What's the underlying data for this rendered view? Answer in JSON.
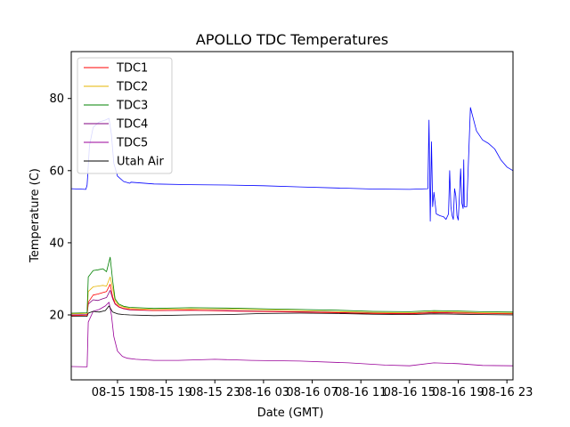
{
  "chart_data": {
    "type": "line",
    "title": "APOLLO TDC Temperatures",
    "xlabel": "Date (GMT)",
    "ylabel": "Temperature (C)",
    "xlim": [
      11.2,
      47.5
    ],
    "ylim": [
      2,
      93
    ],
    "x_units": "hours since 08-15 00:00 GMT",
    "x_ticks": [
      {
        "value": 15,
        "label": "08-15 15"
      },
      {
        "value": 19,
        "label": "08-15 19"
      },
      {
        "value": 23,
        "label": "08-15 23"
      },
      {
        "value": 27,
        "label": "08-16 03"
      },
      {
        "value": 31,
        "label": "08-16 07"
      },
      {
        "value": 35,
        "label": "08-16 11"
      },
      {
        "value": 39,
        "label": "08-16 15"
      },
      {
        "value": 43,
        "label": "08-16 19"
      },
      {
        "value": 47,
        "label": "08-16 23"
      }
    ],
    "y_ticks": [
      {
        "value": 20,
        "label": "20"
      },
      {
        "value": 40,
        "label": "40"
      },
      {
        "value": 60,
        "label": "60"
      },
      {
        "value": 80,
        "label": "80"
      }
    ],
    "legend_position": "top-left",
    "series": [
      {
        "name": "TDC1",
        "color": "#ff0000",
        "x": [
          11.2,
          12.5,
          12.6,
          13.0,
          13.4,
          13.8,
          14.1,
          14.4,
          14.6,
          14.8,
          15.1,
          15.5,
          16.0,
          18.0,
          21.0,
          24.0,
          27.0,
          30.0,
          33.0,
          36.0,
          39.0,
          41.0,
          43.0,
          45.0,
          47.5
        ],
        "y": [
          19.8,
          19.9,
          23.5,
          25.5,
          25.8,
          26.2,
          26.5,
          28.5,
          25.0,
          23.2,
          22.3,
          21.8,
          21.5,
          21.2,
          21.3,
          21.1,
          20.9,
          20.8,
          20.6,
          20.4,
          20.3,
          20.6,
          20.5,
          20.4,
          20.3
        ]
      },
      {
        "name": "TDC2",
        "color": "#e6b400",
        "x": [
          11.2,
          12.5,
          12.6,
          13.0,
          13.4,
          13.8,
          14.1,
          14.4,
          14.6,
          14.8,
          15.1,
          15.5,
          16.0,
          18.0,
          21.0,
          24.0,
          27.0,
          30.0,
          33.0,
          36.0,
          39.0,
          41.0,
          43.0,
          45.0,
          47.5
        ],
        "y": [
          20.3,
          20.4,
          26.5,
          27.8,
          28.0,
          28.2,
          28.0,
          30.5,
          27.5,
          24.0,
          22.7,
          22.2,
          21.8,
          21.5,
          21.7,
          21.6,
          21.4,
          21.2,
          20.9,
          20.7,
          20.6,
          20.9,
          20.8,
          20.6,
          20.5
        ]
      },
      {
        "name": "TDC3",
        "color": "#008000",
        "x": [
          11.2,
          12.5,
          12.6,
          13.0,
          13.4,
          13.8,
          14.1,
          14.4,
          14.6,
          14.8,
          15.1,
          15.5,
          16.0,
          18.0,
          21.0,
          24.0,
          27.0,
          30.0,
          33.0,
          36.0,
          39.0,
          41.0,
          43.0,
          45.0,
          47.5
        ],
        "y": [
          20.5,
          20.6,
          30.5,
          32.3,
          32.5,
          32.8,
          32.0,
          36.0,
          29.5,
          24.5,
          23.0,
          22.4,
          22.1,
          21.8,
          22.0,
          21.9,
          21.7,
          21.5,
          21.3,
          21.0,
          20.9,
          21.2,
          21.1,
          20.9,
          20.8
        ]
      },
      {
        "name": "TDC4",
        "color": "#800080",
        "x": [
          11.2,
          12.5,
          12.6,
          13.0,
          13.4,
          13.8,
          14.1,
          14.4,
          14.6,
          14.8,
          15.1,
          15.5,
          16.0,
          18.0,
          21.0,
          24.0,
          27.0,
          30.0,
          33.0,
          36.0,
          39.0,
          41.0,
          43.0,
          45.0,
          47.5
        ],
        "y": [
          20.0,
          20.1,
          23.0,
          24.2,
          24.0,
          24.5,
          24.8,
          26.8,
          24.5,
          23.0,
          22.2,
          21.7,
          21.4,
          21.2,
          21.3,
          21.2,
          21.0,
          20.9,
          20.7,
          20.5,
          20.4,
          20.7,
          20.6,
          20.5,
          20.4
        ]
      },
      {
        "name": "TDC5",
        "color": "#990099",
        "x": [
          11.2,
          12.5,
          12.6,
          13.0,
          13.5,
          14.0,
          14.3,
          14.5,
          14.7,
          15.0,
          15.4,
          15.8,
          16.5,
          18.0,
          20.0,
          23.0,
          26.0,
          30.0,
          34.0,
          37.0,
          39.0,
          41.0,
          43.0,
          45.0,
          47.5
        ],
        "y": [
          5.7,
          5.6,
          18.0,
          21.0,
          21.5,
          22.5,
          23.5,
          20.0,
          14.0,
          10.0,
          8.5,
          8.0,
          7.7,
          7.4,
          7.4,
          7.7,
          7.4,
          7.2,
          6.7,
          6.1,
          5.9,
          6.7,
          6.5,
          6.0,
          5.9
        ]
      },
      {
        "name": "Utah Air",
        "color": "#000000",
        "x": [
          11.2,
          12.5,
          12.6,
          13.0,
          13.5,
          14.0,
          14.3,
          14.6,
          15.0,
          15.5,
          16.0,
          18.0,
          21.0,
          24.0,
          27.0,
          30.0,
          33.0,
          36.0,
          39.0,
          41.0,
          43.0,
          45.0,
          47.5
        ],
        "y": [
          19.6,
          19.6,
          20.5,
          21.0,
          20.8,
          21.2,
          22.5,
          20.8,
          20.3,
          20.1,
          20.0,
          19.8,
          20.0,
          20.1,
          20.4,
          20.5,
          20.4,
          20.2,
          20.1,
          20.3,
          20.2,
          20.1,
          20.0
        ]
      },
      {
        "name": "",
        "color": "#0000ff",
        "x": [
          11.2,
          12.4,
          12.5,
          12.7,
          13.0,
          13.5,
          14.0,
          14.3,
          14.5,
          14.7,
          15.0,
          15.5,
          16.0,
          16.1,
          18.0,
          21.0,
          24.0,
          27.0,
          30.0,
          33.0,
          36.0,
          39.0,
          40.5,
          40.6,
          40.7,
          40.8,
          40.9,
          41.0,
          41.2,
          41.5,
          41.8,
          42.0,
          42.2,
          42.3,
          42.4,
          42.5,
          42.6,
          42.7,
          42.8,
          42.9,
          43.0,
          43.1,
          43.2,
          43.3,
          43.4,
          43.45,
          43.5,
          43.7,
          44.0,
          44.5,
          45.0,
          45.5,
          46.0,
          46.5,
          47.0,
          47.5
        ],
        "y": [
          55.0,
          54.8,
          56.0,
          67.0,
          72.0,
          73.5,
          74.0,
          74.5,
          70.0,
          62.0,
          58.5,
          57.0,
          56.5,
          56.8,
          56.3,
          56.1,
          56.0,
          55.8,
          55.5,
          55.2,
          54.9,
          54.8,
          55.0,
          74.0,
          46.0,
          68.0,
          50.0,
          54.0,
          48.0,
          47.5,
          47.2,
          46.5,
          48.0,
          60.0,
          50.0,
          47.5,
          46.5,
          55.0,
          53.0,
          47.5,
          46.3,
          53.0,
          60.5,
          51.0,
          49.5,
          63.0,
          50.0,
          50.0,
          77.5,
          71.0,
          68.5,
          67.5,
          66.0,
          63.0,
          61.0,
          60.0
        ]
      }
    ]
  }
}
